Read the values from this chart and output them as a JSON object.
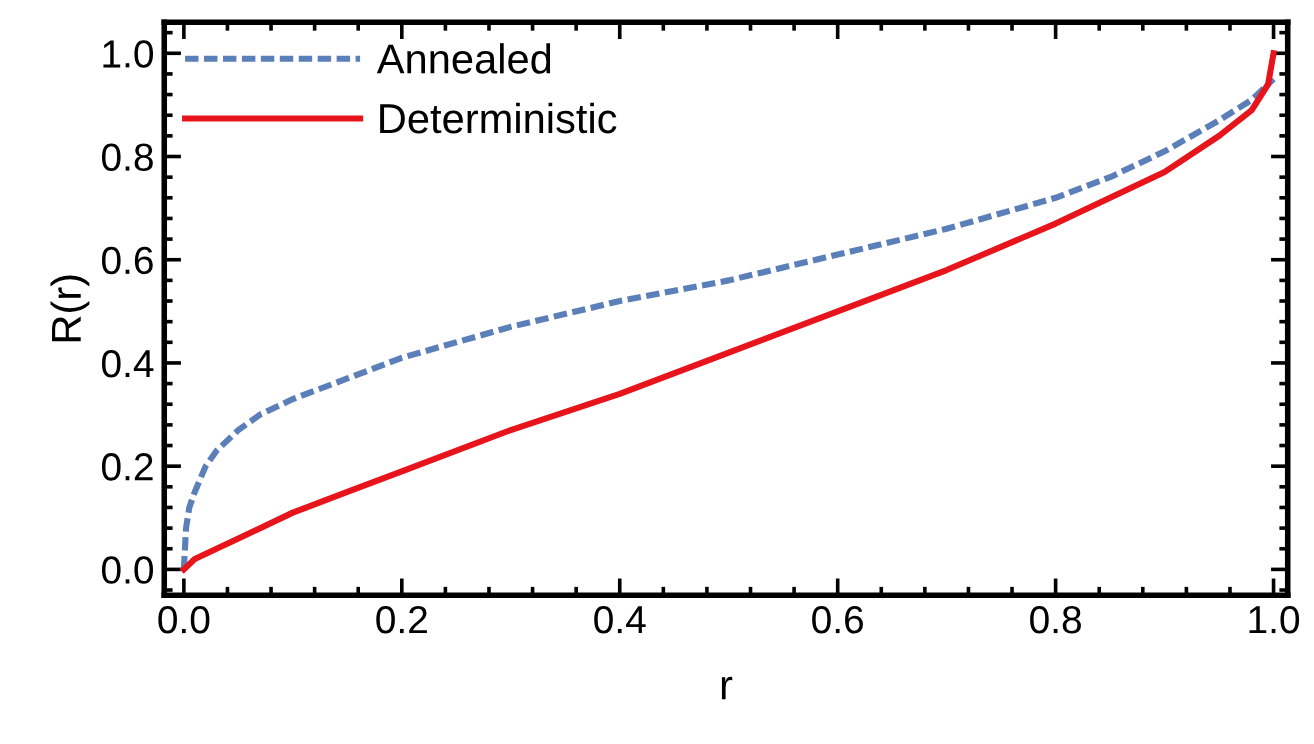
{
  "chart_data": {
    "type": "line",
    "xlabel": "r",
    "ylabel": "R(r)",
    "xlim": [
      -0.018,
      1.013
    ],
    "ylim": [
      -0.05,
      1.06
    ],
    "xticks": [
      {
        "value": 0,
        "label": "0.0"
      },
      0.2,
      0.4,
      0.6,
      0.8,
      {
        "value": 1,
        "label": "1.0"
      }
    ],
    "yticks": [
      {
        "value": 0,
        "label": "0.0"
      },
      0.2,
      0.4,
      0.6,
      0.8,
      {
        "value": 1,
        "label": "1.0"
      }
    ],
    "grid": false,
    "legend": "top left",
    "marker": "none",
    "series": [
      {
        "name": "Annealed",
        "color": "#5b7fb8",
        "line_style": "dashed",
        "x": [
          0,
          0.002,
          0.005,
          0.01,
          0.02,
          0.03,
          0.05,
          0.07,
          0.1,
          0.15,
          0.2,
          0.3,
          0.4,
          0.5,
          0.6,
          0.7,
          0.8,
          0.85,
          0.9,
          0.95,
          0.98,
          1.0
        ],
        "values": [
          0.0,
          0.08,
          0.12,
          0.15,
          0.2,
          0.23,
          0.27,
          0.3,
          0.33,
          0.37,
          0.41,
          0.47,
          0.52,
          0.56,
          0.61,
          0.66,
          0.72,
          0.76,
          0.81,
          0.87,
          0.91,
          0.95
        ]
      },
      {
        "name": "Deterministic",
        "color": "#e8141c",
        "line_style": "solid",
        "x": [
          0,
          0.01,
          0.03,
          0.05,
          0.1,
          0.15,
          0.2,
          0.3,
          0.4,
          0.5,
          0.6,
          0.7,
          0.8,
          0.85,
          0.9,
          0.95,
          0.98,
          0.995,
          1.0
        ],
        "values": [
          0.0,
          0.02,
          0.04,
          0.06,
          0.11,
          0.15,
          0.19,
          0.27,
          0.34,
          0.42,
          0.5,
          0.58,
          0.67,
          0.72,
          0.77,
          0.84,
          0.89,
          0.94,
          1.0
        ]
      }
    ]
  }
}
